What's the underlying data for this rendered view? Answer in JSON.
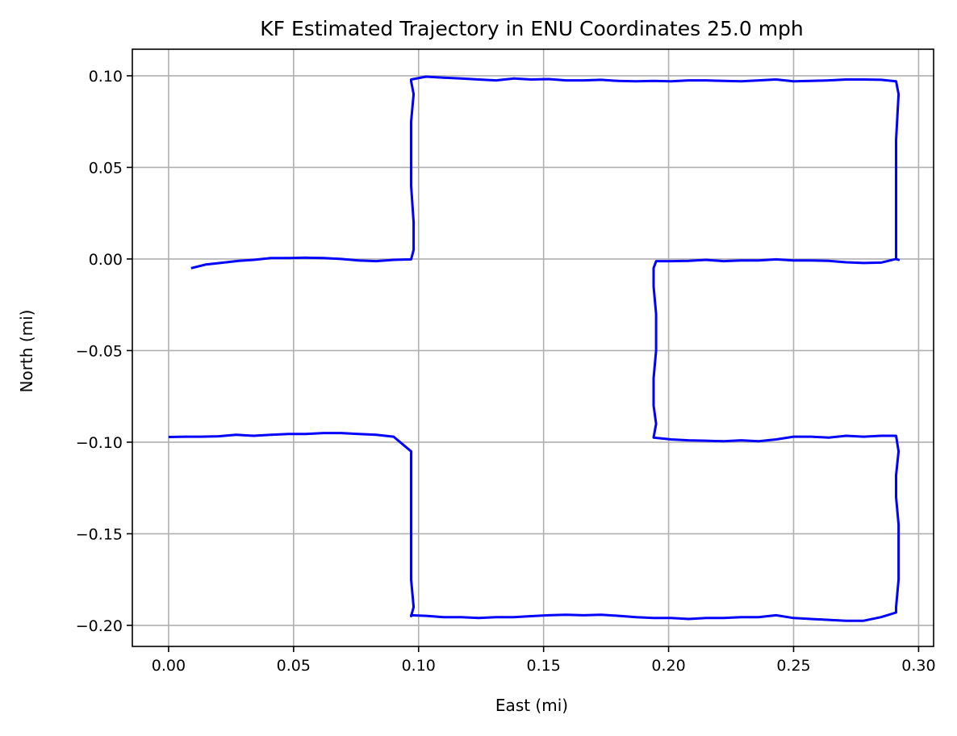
{
  "chart_data": {
    "type": "line",
    "title": "KF Estimated Trajectory in ENU Coordinates 25.0 mph",
    "xlabel": "East (mi)",
    "ylabel": "North (mi)",
    "xlim": [
      -0.0145,
      0.306
    ],
    "ylim": [
      -0.2115,
      0.1145
    ],
    "xticks": [
      0.0,
      0.05,
      0.1,
      0.15,
      0.2,
      0.25,
      0.3
    ],
    "xtick_labels": [
      "0.00",
      "0.05",
      "0.10",
      "0.15",
      "0.20",
      "0.25",
      "0.30"
    ],
    "yticks": [
      0.1,
      0.05,
      0.0,
      -0.05,
      -0.1,
      -0.15,
      -0.2
    ],
    "ytick_labels": [
      "0.10",
      "0.05",
      "0.00",
      "−0.05",
      "−0.10",
      "−0.15",
      "−0.20"
    ],
    "grid": true,
    "legend": false,
    "series_color": "#0000ff",
    "grid_color": "#b0b0b0",
    "series": [
      {
        "x": [
          0.009,
          0.015,
          0.022,
          0.028,
          0.034,
          0.041,
          0.048,
          0.055,
          0.062,
          0.069,
          0.076,
          0.083,
          0.09,
          0.097,
          0.098,
          0.098,
          0.097,
          0.097,
          0.097,
          0.098,
          0.097,
          0.097,
          0.097,
          0.103,
          0.11,
          0.117,
          0.124,
          0.131,
          0.138,
          0.145,
          0.152,
          0.159,
          0.166,
          0.173,
          0.18,
          0.187,
          0.194,
          0.201,
          0.208,
          0.215,
          0.222,
          0.229,
          0.236,
          0.243,
          0.25,
          0.257,
          0.264,
          0.271,
          0.278,
          0.285,
          0.291,
          0.292,
          0.291,
          0.291,
          0.291,
          0.291,
          0.291,
          0.292,
          0.291,
          0.285,
          0.278,
          0.271,
          0.264,
          0.257,
          0.25,
          0.243,
          0.236,
          0.229,
          0.222,
          0.215,
          0.208,
          0.201,
          0.195,
          0.194,
          0.194,
          0.195,
          0.195,
          0.194,
          0.194,
          0.195,
          0.194,
          0.201,
          0.208,
          0.215,
          0.222,
          0.229,
          0.236,
          0.243,
          0.25,
          0.257,
          0.264,
          0.271,
          0.278,
          0.285,
          0.291,
          0.292,
          0.291,
          0.291,
          0.292,
          0.292,
          0.292,
          0.291,
          0.291,
          0.285,
          0.278,
          0.271,
          0.264,
          0.257,
          0.25,
          0.243,
          0.236,
          0.229,
          0.222,
          0.215,
          0.208,
          0.201,
          0.194,
          0.187,
          0.18,
          0.173,
          0.166,
          0.159,
          0.152,
          0.145,
          0.138,
          0.131,
          0.124,
          0.117,
          0.11,
          0.103,
          0.097,
          0.097,
          0.098,
          0.097,
          0.097,
          0.097,
          0.097,
          0.097,
          0.097,
          0.09,
          0.083,
          0.076,
          0.069,
          0.062,
          0.055,
          0.048,
          0.041,
          0.034,
          0.027,
          0.02,
          0.013,
          0.007,
          0.0
        ],
        "y": [
          -0.005,
          -0.003,
          -0.002,
          -0.001,
          -0.0005,
          0.0005,
          0.0005,
          0.0007,
          0.0005,
          0.0,
          -0.0008,
          -0.0012,
          -0.0005,
          -0.0002,
          0.005,
          0.02,
          0.04,
          0.06,
          0.075,
          0.09,
          0.097,
          0.098,
          0.098,
          0.0995,
          0.099,
          0.0985,
          0.098,
          0.0975,
          0.0985,
          0.098,
          0.0982,
          0.0975,
          0.0975,
          0.0978,
          0.0972,
          0.097,
          0.0972,
          0.097,
          0.0975,
          0.0975,
          0.0972,
          0.097,
          0.0975,
          0.098,
          0.097,
          0.0972,
          0.0975,
          0.098,
          0.098,
          0.0978,
          0.097,
          0.09,
          0.065,
          0.035,
          0.01,
          0.005,
          0.0,
          -0.0005,
          0.0,
          -0.002,
          -0.0022,
          -0.0018,
          -0.001,
          -0.0008,
          -0.0008,
          -0.0002,
          -0.0008,
          -0.0008,
          -0.0012,
          -0.0005,
          -0.001,
          -0.0012,
          -0.0012,
          -0.005,
          -0.015,
          -0.03,
          -0.05,
          -0.065,
          -0.08,
          -0.09,
          -0.0975,
          -0.0985,
          -0.099,
          -0.0992,
          -0.0995,
          -0.099,
          -0.0995,
          -0.0985,
          -0.097,
          -0.097,
          -0.0975,
          -0.0965,
          -0.097,
          -0.0965,
          -0.0965,
          -0.105,
          -0.118,
          -0.13,
          -0.145,
          -0.16,
          -0.175,
          -0.19,
          -0.193,
          -0.1955,
          -0.1975,
          -0.1975,
          -0.197,
          -0.1965,
          -0.196,
          -0.1945,
          -0.1955,
          -0.1955,
          -0.196,
          -0.196,
          -0.1965,
          -0.196,
          -0.196,
          -0.1955,
          -0.1948,
          -0.1942,
          -0.1945,
          -0.1942,
          -0.1945,
          -0.195,
          -0.1955,
          -0.1955,
          -0.196,
          -0.1955,
          -0.1955,
          -0.1948,
          -0.1945,
          -0.195,
          -0.19,
          -0.175,
          -0.16,
          -0.145,
          -0.13,
          -0.115,
          -0.105,
          -0.097,
          -0.096,
          -0.0955,
          -0.095,
          -0.095,
          -0.0955,
          -0.0955,
          -0.096,
          -0.0965,
          -0.096,
          -0.0968,
          -0.097,
          -0.097,
          -0.0972
        ]
      }
    ]
  }
}
